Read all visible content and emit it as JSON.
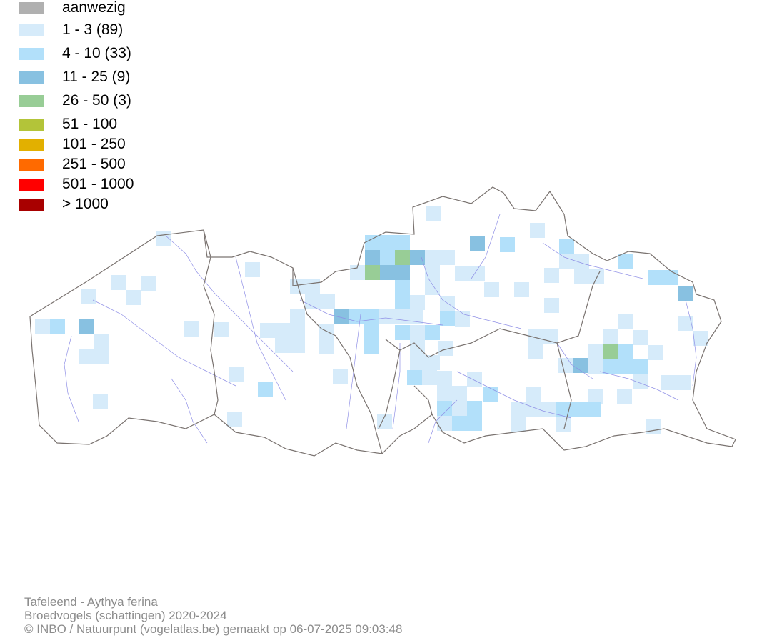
{
  "legend": [
    {
      "label": "aanwezig",
      "color": "#b0b0b0"
    },
    {
      "label": "1 - 3 (89)",
      "color": "#d6ebfa"
    },
    {
      "label": "4 - 10 (33)",
      "color": "#b2e0fa"
    },
    {
      "label": "11 - 25 (9)",
      "color": "#88c1e1"
    },
    {
      "label": "26 - 50 (3)",
      "color": "#98cd96"
    },
    {
      "label": "51 - 100",
      "color": "#b3c439"
    },
    {
      "label": "101 - 250",
      "color": "#e2b000"
    },
    {
      "label": "251 - 500",
      "color": "#ff6a00"
    },
    {
      "label": "501 - 1000",
      "color": "#ff0000"
    },
    {
      "label": "> 1000",
      "color": "#a80000"
    }
  ],
  "credits": {
    "species": "Tafeleend - Aythya ferina",
    "dataset": "Broedvogels (schattingen) 2020-2024",
    "copyright": "© INBO / Natuurpunt (vogelatlas.be) gemaakt op 06-07-2025 09:03:48"
  },
  "map": {
    "border_color": "#7a7370",
    "river_color": "#8f8fe6"
  }
}
